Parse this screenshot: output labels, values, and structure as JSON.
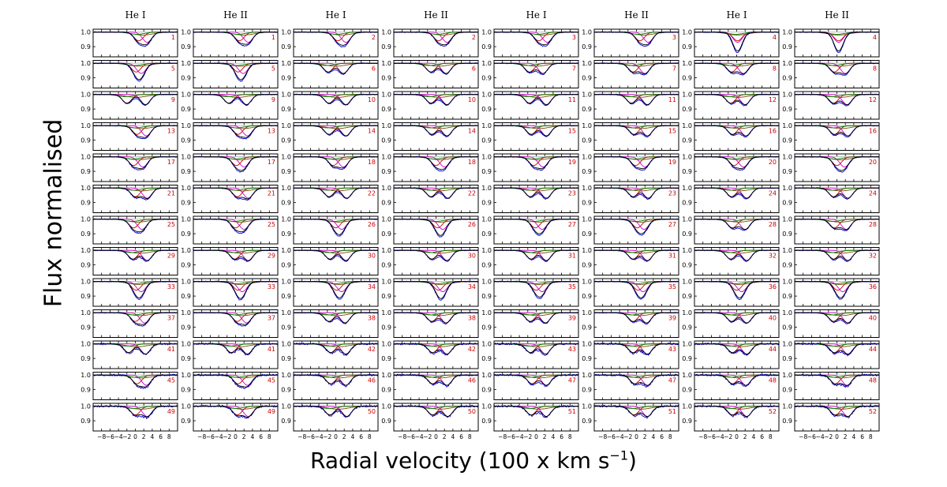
{
  "figure": {
    "ylabel": "Flux normalised",
    "xlabel_main": "Radial velocity (100 x km s",
    "xlabel_sup": "−1",
    "xlabel_close": ")"
  },
  "colors": {
    "observed": "#0000cc",
    "fit": "#000000",
    "component_a": "#cc0000",
    "component_b": "#cc00cc",
    "component_c": "#7a4a10",
    "component_d": "#008000",
    "panel_number": "#cc0000",
    "frame": "#000000",
    "separator": "#bbbbbb"
  },
  "chart_data": {
    "type": "line",
    "layout": "grid of small multiples: 8 columns × 13 rows",
    "column_titles": [
      "He I",
      "He II",
      "He I",
      "He II",
      "He I",
      "He II",
      "He I",
      "He II"
    ],
    "panel_numbers": [
      [
        "1",
        "1",
        "2",
        "2",
        "3",
        "3",
        "4",
        "4"
      ],
      [
        "5",
        "5",
        "6",
        "6",
        "7",
        "7",
        "8",
        "8"
      ],
      [
        "9",
        "9",
        "10",
        "10",
        "11",
        "11",
        "12",
        "12"
      ],
      [
        "13",
        "13",
        "14",
        "14",
        "15",
        "15",
        "16",
        "16"
      ],
      [
        "17",
        "17",
        "18",
        "18",
        "19",
        "19",
        "20",
        "20"
      ],
      [
        "21",
        "21",
        "22",
        "22",
        "23",
        "23",
        "24",
        "24"
      ],
      [
        "25",
        "25",
        "26",
        "26",
        "27",
        "27",
        "28",
        "28"
      ],
      [
        "29",
        "29",
        "30",
        "30",
        "31",
        "31",
        "32",
        "32"
      ],
      [
        "33",
        "33",
        "34",
        "34",
        "35",
        "35",
        "36",
        "36"
      ],
      [
        "37",
        "37",
        "38",
        "38",
        "39",
        "39",
        "40",
        "40"
      ],
      [
        "41",
        "41",
        "42",
        "42",
        "43",
        "43",
        "44",
        "44"
      ],
      [
        "45",
        "45",
        "46",
        "46",
        "47",
        "47",
        "48",
        "48"
      ],
      [
        "49",
        "49",
        "50",
        "50",
        "51",
        "51",
        "52",
        "52"
      ]
    ],
    "xlabel": "Radial velocity (100 x km s−1)",
    "ylabel": "Flux normalised",
    "xlim": [
      -10,
      10
    ],
    "ylim": [
      0.83,
      1.02
    ],
    "x_ticks": [
      -8,
      -6,
      -4,
      -2,
      0,
      2,
      4,
      6,
      8
    ],
    "x_tick_labels": [
      "−8",
      "−6",
      "−4",
      "−2",
      "0",
      "2",
      "4",
      "6",
      "8"
    ],
    "y_ticks": [
      1.0,
      0.9
    ],
    "y_tick_labels": [
      "1.0",
      "0.9"
    ],
    "panel_profiles": {
      "description": "For each panel: positions (x, in 100 km/s) and depths of the two stellar absorption components; the black line is their sum, blue is the observed spectrum.",
      "component_1_x": [
        [
          0.8,
          0.9,
          0.5,
          0.6,
          0.6,
          0.8,
          0.2,
          0.4
        ],
        [
          0.2,
          0.6,
          -1.8,
          -1.2,
          -1.6,
          -0.8,
          -1.2,
          -0.6
        ],
        [
          -2.0,
          -1.6,
          -1.6,
          -1.2,
          -1.6,
          -1.2,
          -1.4,
          -0.8
        ],
        [
          0.4,
          0.6,
          -1.6,
          -1.0,
          -1.2,
          -0.6,
          -1.0,
          -0.6
        ],
        [
          -0.4,
          0.2,
          -0.6,
          0.0,
          -0.6,
          -0.2,
          -0.6,
          0.0
        ],
        [
          0.0,
          0.4,
          -1.6,
          -1.2,
          -1.4,
          -0.8,
          -1.2,
          -0.8
        ],
        [
          -0.4,
          0.0,
          0.0,
          0.4,
          -0.2,
          0.2,
          -1.0,
          -0.6
        ],
        [
          -0.6,
          -0.2,
          -1.4,
          -1.0,
          -1.2,
          -0.8,
          -1.4,
          -0.8
        ],
        [
          0.2,
          0.6,
          0.2,
          0.6,
          0.0,
          0.4,
          0.0,
          0.2
        ],
        [
          0.0,
          0.4,
          -1.6,
          -1.0,
          -1.4,
          -0.8,
          -1.2,
          -0.8
        ],
        [
          -1.6,
          -1.0,
          -1.2,
          -0.8,
          -1.4,
          -0.8,
          -1.0,
          -0.6
        ],
        [
          0.4,
          0.6,
          -1.2,
          -0.8,
          -1.0,
          -0.4,
          -1.0,
          -0.4
        ],
        [
          0.0,
          0.4,
          -1.4,
          -0.8,
          -1.2,
          -0.6,
          -1.0,
          -0.4
        ]
      ],
      "component_2_x": [
        [
          2.8,
          3.0,
          2.4,
          2.6,
          2.6,
          2.8,
          0.2,
          0.4
        ],
        [
          1.4,
          1.8,
          1.8,
          2.4,
          1.6,
          2.0,
          1.6,
          2.0
        ],
        [
          2.4,
          2.6,
          2.4,
          2.6,
          2.4,
          2.6,
          2.0,
          2.4
        ],
        [
          2.6,
          2.8,
          2.4,
          2.6,
          2.4,
          2.6,
          2.2,
          2.6
        ],
        [
          1.8,
          2.0,
          1.8,
          2.0,
          1.6,
          2.0,
          1.6,
          1.8
        ],
        [
          2.8,
          3.0,
          2.6,
          2.8,
          2.4,
          2.8,
          2.4,
          2.6
        ],
        [
          1.6,
          2.0,
          1.4,
          1.6,
          1.4,
          1.8,
          2.0,
          2.2
        ],
        [
          2.8,
          3.0,
          2.4,
          2.6,
          2.4,
          2.6,
          2.4,
          2.6
        ],
        [
          1.4,
          1.6,
          1.4,
          1.6,
          1.4,
          1.6,
          1.2,
          1.4
        ],
        [
          2.2,
          2.6,
          2.2,
          2.4,
          2.2,
          2.4,
          2.4,
          2.6
        ],
        [
          2.4,
          2.8,
          2.4,
          2.6,
          2.2,
          2.6,
          2.4,
          2.6
        ],
        [
          2.6,
          2.8,
          2.4,
          2.6,
          2.4,
          2.6,
          2.2,
          2.4
        ],
        [
          2.8,
          3.0,
          2.6,
          2.8,
          2.4,
          2.6,
          2.4,
          2.6
        ]
      ],
      "component_depth": [
        0.06,
        0.07
      ]
    }
  }
}
